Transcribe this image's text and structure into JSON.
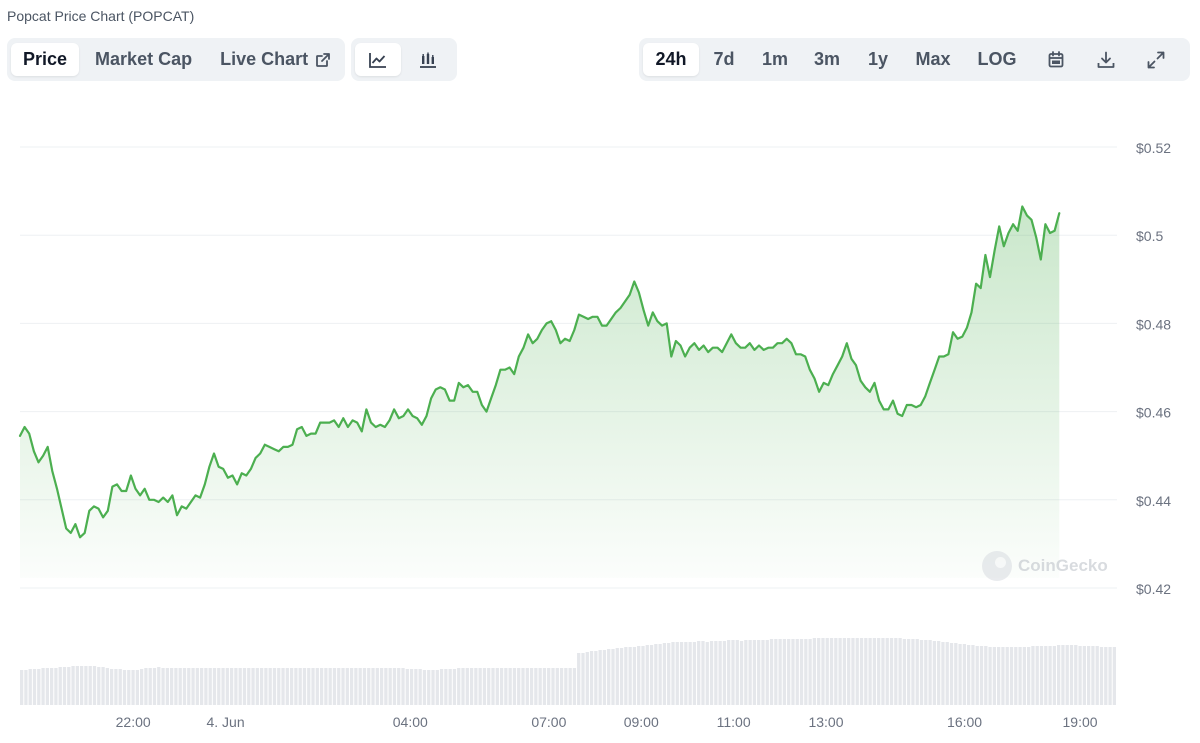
{
  "title": "Popcat Price Chart (POPCAT)",
  "left_tabs": [
    {
      "label": "Price",
      "active": true
    },
    {
      "label": "Market Cap",
      "active": false
    },
    {
      "label": "Live Chart",
      "active": false
    }
  ],
  "chart_type_buttons": [
    {
      "icon": "line-chart-icon",
      "active": true
    },
    {
      "icon": "candlestick-chart-icon",
      "active": false
    }
  ],
  "range_tabs": [
    {
      "label": "24h",
      "active": true
    },
    {
      "label": "7d",
      "active": false
    },
    {
      "label": "1m",
      "active": false
    },
    {
      "label": "3m",
      "active": false
    },
    {
      "label": "1y",
      "active": false
    },
    {
      "label": "Max",
      "active": false
    },
    {
      "label": "LOG",
      "active": false
    }
  ],
  "tool_buttons": [
    "calendar-icon",
    "download-icon",
    "fullscreen-icon"
  ],
  "watermark": "CoinGecko",
  "colors": {
    "line": "#4caf50",
    "volume": "#e5e7eb",
    "grid": "#eef0f3",
    "axis_text": "#6b7280"
  },
  "chart_data": {
    "type": "area",
    "ylim": [
      0.42,
      0.52
    ],
    "yticks": [
      0.42,
      0.44,
      0.46,
      0.48,
      0.5,
      0.52
    ],
    "ytick_labels": [
      "$0.42",
      "$0.44",
      "$0.46",
      "$0.48",
      "$0.5",
      "$0.52"
    ],
    "x_range": [
      19.55,
      43.3
    ],
    "xticks": [
      22,
      24,
      28,
      31,
      33,
      35,
      37,
      40,
      42.5
    ],
    "xtick_labels": [
      "22:00",
      "4. Jun",
      "04:00",
      "07:00",
      "09:00",
      "11:00",
      "13:00",
      "16:00",
      "19:00"
    ],
    "grid": true,
    "series": [
      {
        "values": [
          [
            19.55,
            0.4545
          ],
          [
            19.65,
            0.4565
          ],
          [
            19.75,
            0.455
          ],
          [
            19.85,
            0.451
          ],
          [
            19.95,
            0.4485
          ],
          [
            20.05,
            0.45
          ],
          [
            20.15,
            0.452
          ],
          [
            20.25,
            0.4465
          ],
          [
            20.35,
            0.4425
          ],
          [
            20.45,
            0.438
          ],
          [
            20.55,
            0.4335
          ],
          [
            20.65,
            0.4325
          ],
          [
            20.75,
            0.4345
          ],
          [
            20.85,
            0.4315
          ],
          [
            20.95,
            0.4325
          ],
          [
            21.05,
            0.4375
          ],
          [
            21.15,
            0.4385
          ],
          [
            21.25,
            0.438
          ],
          [
            21.35,
            0.436
          ],
          [
            21.45,
            0.4375
          ],
          [
            21.55,
            0.443
          ],
          [
            21.65,
            0.4435
          ],
          [
            21.75,
            0.442
          ],
          [
            21.85,
            0.442
          ],
          [
            21.95,
            0.4455
          ],
          [
            22.05,
            0.4425
          ],
          [
            22.15,
            0.441
          ],
          [
            22.25,
            0.4425
          ],
          [
            22.35,
            0.44
          ],
          [
            22.45,
            0.44
          ],
          [
            22.55,
            0.4395
          ],
          [
            22.65,
            0.4405
          ],
          [
            22.75,
            0.4395
          ],
          [
            22.85,
            0.441
          ],
          [
            22.95,
            0.4365
          ],
          [
            23.05,
            0.4385
          ],
          [
            23.15,
            0.438
          ],
          [
            23.25,
            0.4395
          ],
          [
            23.35,
            0.441
          ],
          [
            23.45,
            0.4405
          ],
          [
            23.55,
            0.4435
          ],
          [
            23.65,
            0.4475
          ],
          [
            23.75,
            0.4505
          ],
          [
            23.85,
            0.4475
          ],
          [
            23.95,
            0.447
          ],
          [
            24.05,
            0.445
          ],
          [
            24.15,
            0.4455
          ],
          [
            24.25,
            0.4435
          ],
          [
            24.35,
            0.446
          ],
          [
            24.45,
            0.4455
          ],
          [
            24.55,
            0.447
          ],
          [
            24.65,
            0.4495
          ],
          [
            24.75,
            0.4505
          ],
          [
            24.85,
            0.4525
          ],
          [
            24.95,
            0.452
          ],
          [
            25.05,
            0.4515
          ],
          [
            25.15,
            0.451
          ],
          [
            25.25,
            0.452
          ],
          [
            25.35,
            0.452
          ],
          [
            25.45,
            0.4525
          ],
          [
            25.55,
            0.456
          ],
          [
            25.65,
            0.4565
          ],
          [
            25.75,
            0.4545
          ],
          [
            25.85,
            0.455
          ],
          [
            25.95,
            0.455
          ],
          [
            26.05,
            0.4575
          ],
          [
            26.15,
            0.4575
          ],
          [
            26.25,
            0.4575
          ],
          [
            26.35,
            0.458
          ],
          [
            26.45,
            0.4565
          ],
          [
            26.55,
            0.4585
          ],
          [
            26.65,
            0.4565
          ],
          [
            26.75,
            0.458
          ],
          [
            26.85,
            0.4575
          ],
          [
            26.95,
            0.4555
          ],
          [
            27.05,
            0.4605
          ],
          [
            27.15,
            0.4575
          ],
          [
            27.25,
            0.4565
          ],
          [
            27.35,
            0.457
          ],
          [
            27.45,
            0.4565
          ],
          [
            27.55,
            0.458
          ],
          [
            27.65,
            0.4605
          ],
          [
            27.75,
            0.4585
          ],
          [
            27.85,
            0.459
          ],
          [
            27.95,
            0.4605
          ],
          [
            28.05,
            0.459
          ],
          [
            28.15,
            0.4585
          ],
          [
            28.25,
            0.457
          ],
          [
            28.35,
            0.459
          ],
          [
            28.45,
            0.463
          ],
          [
            28.55,
            0.465
          ],
          [
            28.65,
            0.4655
          ],
          [
            28.75,
            0.465
          ],
          [
            28.85,
            0.4625
          ],
          [
            28.95,
            0.4625
          ],
          [
            29.05,
            0.4665
          ],
          [
            29.15,
            0.4655
          ],
          [
            29.25,
            0.466
          ],
          [
            29.35,
            0.4645
          ],
          [
            29.45,
            0.4645
          ],
          [
            29.55,
            0.4615
          ],
          [
            29.65,
            0.46
          ],
          [
            29.75,
            0.463
          ],
          [
            29.85,
            0.466
          ],
          [
            29.95,
            0.4695
          ],
          [
            30.05,
            0.4695
          ],
          [
            30.15,
            0.47
          ],
          [
            30.25,
            0.4685
          ],
          [
            30.35,
            0.4725
          ],
          [
            30.45,
            0.4745
          ],
          [
            30.55,
            0.4775
          ],
          [
            30.65,
            0.4755
          ],
          [
            30.75,
            0.4765
          ],
          [
            30.85,
            0.4785
          ],
          [
            30.95,
            0.48
          ],
          [
            31.05,
            0.4805
          ],
          [
            31.15,
            0.4785
          ],
          [
            31.25,
            0.4755
          ],
          [
            31.35,
            0.4765
          ],
          [
            31.45,
            0.476
          ],
          [
            31.55,
            0.4785
          ],
          [
            31.65,
            0.482
          ],
          [
            31.75,
            0.4815
          ],
          [
            31.85,
            0.481
          ],
          [
            31.95,
            0.4815
          ],
          [
            32.05,
            0.4815
          ],
          [
            32.15,
            0.4795
          ],
          [
            32.25,
            0.4795
          ],
          [
            32.35,
            0.481
          ],
          [
            32.45,
            0.4825
          ],
          [
            32.55,
            0.4835
          ],
          [
            32.65,
            0.485
          ],
          [
            32.75,
            0.4865
          ],
          [
            32.85,
            0.4895
          ],
          [
            32.95,
            0.487
          ],
          [
            33.05,
            0.483
          ],
          [
            33.15,
            0.4795
          ],
          [
            33.25,
            0.4825
          ],
          [
            33.35,
            0.4805
          ],
          [
            33.45,
            0.4795
          ],
          [
            33.55,
            0.48
          ],
          [
            33.65,
            0.4725
          ],
          [
            33.75,
            0.476
          ],
          [
            33.85,
            0.475
          ],
          [
            33.95,
            0.4725
          ],
          [
            34.05,
            0.4745
          ],
          [
            34.15,
            0.4755
          ],
          [
            34.25,
            0.474
          ],
          [
            34.35,
            0.475
          ],
          [
            34.45,
            0.4735
          ],
          [
            34.55,
            0.4745
          ],
          [
            34.65,
            0.4745
          ],
          [
            34.75,
            0.4735
          ],
          [
            34.85,
            0.4755
          ],
          [
            34.95,
            0.4775
          ],
          [
            35.05,
            0.4755
          ],
          [
            35.15,
            0.4745
          ],
          [
            35.25,
            0.4745
          ],
          [
            35.35,
            0.4755
          ],
          [
            35.45,
            0.474
          ],
          [
            35.55,
            0.475
          ],
          [
            35.65,
            0.474
          ],
          [
            35.75,
            0.4745
          ],
          [
            35.85,
            0.4745
          ],
          [
            35.95,
            0.4755
          ],
          [
            36.05,
            0.4755
          ],
          [
            36.15,
            0.4765
          ],
          [
            36.25,
            0.4755
          ],
          [
            36.35,
            0.473
          ],
          [
            36.45,
            0.473
          ],
          [
            36.55,
            0.4725
          ],
          [
            36.65,
            0.4695
          ],
          [
            36.75,
            0.4675
          ],
          [
            36.85,
            0.4645
          ],
          [
            36.95,
            0.4665
          ],
          [
            37.05,
            0.466
          ],
          [
            37.15,
            0.4685
          ],
          [
            37.25,
            0.4705
          ],
          [
            37.35,
            0.4725
          ],
          [
            37.45,
            0.4755
          ],
          [
            37.55,
            0.472
          ],
          [
            37.65,
            0.4705
          ],
          [
            37.75,
            0.467
          ],
          [
            37.85,
            0.4655
          ],
          [
            37.95,
            0.4645
          ],
          [
            38.05,
            0.4665
          ],
          [
            38.15,
            0.4625
          ],
          [
            38.25,
            0.4605
          ],
          [
            38.35,
            0.4605
          ],
          [
            38.45,
            0.4625
          ],
          [
            38.55,
            0.4595
          ],
          [
            38.65,
            0.459
          ],
          [
            38.75,
            0.4615
          ],
          [
            38.85,
            0.4615
          ],
          [
            38.95,
            0.461
          ],
          [
            39.05,
            0.4615
          ],
          [
            39.15,
            0.4635
          ],
          [
            39.25,
            0.4665
          ],
          [
            39.35,
            0.4695
          ],
          [
            39.45,
            0.4725
          ],
          [
            39.55,
            0.4725
          ],
          [
            39.65,
            0.473
          ],
          [
            39.75,
            0.478
          ],
          [
            39.85,
            0.4765
          ],
          [
            39.95,
            0.477
          ],
          [
            40.05,
            0.479
          ],
          [
            40.15,
            0.4825
          ],
          [
            40.25,
            0.489
          ],
          [
            40.35,
            0.488
          ],
          [
            40.45,
            0.4955
          ],
          [
            40.55,
            0.4905
          ],
          [
            40.65,
            0.4965
          ],
          [
            40.75,
            0.502
          ],
          [
            40.85,
            0.4975
          ],
          [
            40.95,
            0.5005
          ],
          [
            41.05,
            0.5025
          ],
          [
            41.15,
            0.501
          ],
          [
            41.25,
            0.5065
          ],
          [
            41.35,
            0.5045
          ],
          [
            41.45,
            0.5035
          ],
          [
            41.55,
            0.4995
          ],
          [
            41.65,
            0.4945
          ],
          [
            41.75,
            0.5025
          ],
          [
            41.85,
            0.5005
          ],
          [
            41.95,
            0.501
          ],
          [
            42.05,
            0.505
          ]
        ]
      }
    ],
    "volume": [
      0.35,
      0.35,
      0.36,
      0.36,
      0.36,
      0.37,
      0.37,
      0.37,
      0.37,
      0.38,
      0.38,
      0.38,
      0.39,
      0.39,
      0.39,
      0.39,
      0.39,
      0.39,
      0.38,
      0.38,
      0.37,
      0.36,
      0.36,
      0.36,
      0.35,
      0.35,
      0.35,
      0.35,
      0.36,
      0.37,
      0.37,
      0.37,
      0.38,
      0.37,
      0.37,
      0.37,
      0.37,
      0.37,
      0.37,
      0.37,
      0.37,
      0.37,
      0.37,
      0.37,
      0.37,
      0.37,
      0.37,
      0.37,
      0.37,
      0.37,
      0.37,
      0.37,
      0.37,
      0.37,
      0.37,
      0.37,
      0.37,
      0.37,
      0.37,
      0.37,
      0.37,
      0.37,
      0.37,
      0.37,
      0.37,
      0.37,
      0.37,
      0.37,
      0.37,
      0.37,
      0.37,
      0.37,
      0.37,
      0.37,
      0.37,
      0.37,
      0.37,
      0.37,
      0.37,
      0.37,
      0.37,
      0.37,
      0.37,
      0.37,
      0.37,
      0.37,
      0.37,
      0.37,
      0.37,
      0.37,
      0.36,
      0.36,
      0.36,
      0.36,
      0.35,
      0.35,
      0.35,
      0.35,
      0.36,
      0.36,
      0.36,
      0.36,
      0.37,
      0.37,
      0.37,
      0.37,
      0.37,
      0.37,
      0.37,
      0.37,
      0.37,
      0.37,
      0.37,
      0.37,
      0.37,
      0.37,
      0.37,
      0.37,
      0.37,
      0.37,
      0.37,
      0.37,
      0.37,
      0.37,
      0.37,
      0.37,
      0.37,
      0.37,
      0.37,
      0.37,
      0.52,
      0.52,
      0.53,
      0.54,
      0.54,
      0.55,
      0.55,
      0.56,
      0.56,
      0.57,
      0.57,
      0.58,
      0.58,
      0.58,
      0.59,
      0.59,
      0.6,
      0.6,
      0.61,
      0.61,
      0.62,
      0.62,
      0.63,
      0.63,
      0.63,
      0.63,
      0.63,
      0.63,
      0.64,
      0.64,
      0.63,
      0.64,
      0.64,
      0.64,
      0.64,
      0.65,
      0.65,
      0.65,
      0.64,
      0.65,
      0.65,
      0.65,
      0.65,
      0.65,
      0.65,
      0.66,
      0.66,
      0.66,
      0.66,
      0.66,
      0.66,
      0.66,
      0.66,
      0.66,
      0.66,
      0.67,
      0.67,
      0.67,
      0.67,
      0.67,
      0.67,
      0.67,
      0.67,
      0.67,
      0.67,
      0.67,
      0.67,
      0.67,
      0.67,
      0.67,
      0.67,
      0.67,
      0.67,
      0.67,
      0.67,
      0.67,
      0.66,
      0.66,
      0.66,
      0.66,
      0.65,
      0.65,
      0.65,
      0.64,
      0.64,
      0.63,
      0.63,
      0.62,
      0.62,
      0.61,
      0.61,
      0.6,
      0.6,
      0.59,
      0.59,
      0.59,
      0.58,
      0.58,
      0.58,
      0.58,
      0.58,
      0.58,
      0.58,
      0.58,
      0.58,
      0.58,
      0.59,
      0.59,
      0.59,
      0.59,
      0.59,
      0.59,
      0.6,
      0.6,
      0.6,
      0.6,
      0.6,
      0.59,
      0.59,
      0.59,
      0.59,
      0.59,
      0.58,
      0.58,
      0.58,
      0.58
    ]
  }
}
